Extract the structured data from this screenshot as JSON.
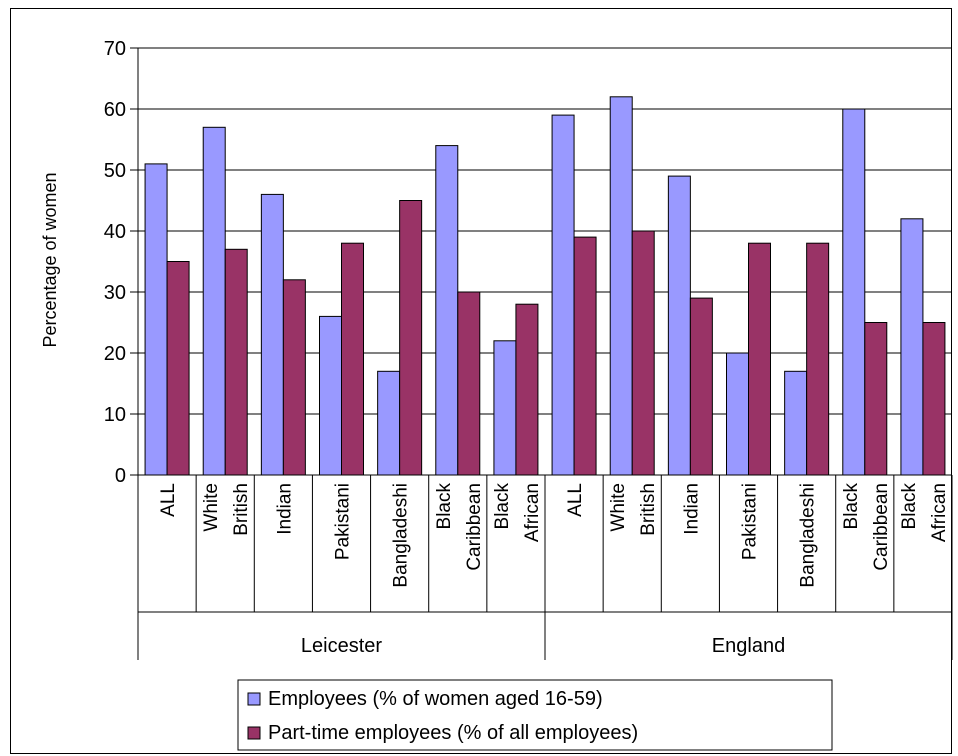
{
  "chart_data": {
    "type": "bar",
    "title": "",
    "ylabel": "Percentage of women",
    "ylim": [
      0,
      70
    ],
    "yticks": [
      0,
      10,
      20,
      30,
      40,
      50,
      60,
      70
    ],
    "grid": true,
    "legend_position": "bottom",
    "groups": [
      {
        "label": "Leicester",
        "categories": [
          [
            "ALL"
          ],
          [
            "White",
            "British"
          ],
          [
            "Indian"
          ],
          [
            "Pakistani"
          ],
          [
            "Bangladeshi"
          ],
          [
            "Black",
            "Caribbean"
          ],
          [
            "Black",
            "African"
          ]
        ]
      },
      {
        "label": "England",
        "categories": [
          [
            "ALL"
          ],
          [
            "White",
            "British"
          ],
          [
            "Indian"
          ],
          [
            "Pakistani"
          ],
          [
            "Bangladeshi"
          ],
          [
            "Black",
            "Caribbean"
          ],
          [
            "Black",
            "African"
          ]
        ]
      }
    ],
    "series": [
      {
        "name": "Employees (% of women aged 16-59)",
        "color": "#9999ff",
        "values": [
          51,
          57,
          46,
          26,
          17,
          54,
          22,
          59,
          62,
          49,
          20,
          17,
          60,
          42
        ]
      },
      {
        "name": "Part-time employees (% of all employees)",
        "color": "#993366",
        "values": [
          35,
          37,
          32,
          38,
          45,
          30,
          28,
          39,
          40,
          29,
          38,
          38,
          25,
          25
        ]
      }
    ]
  }
}
